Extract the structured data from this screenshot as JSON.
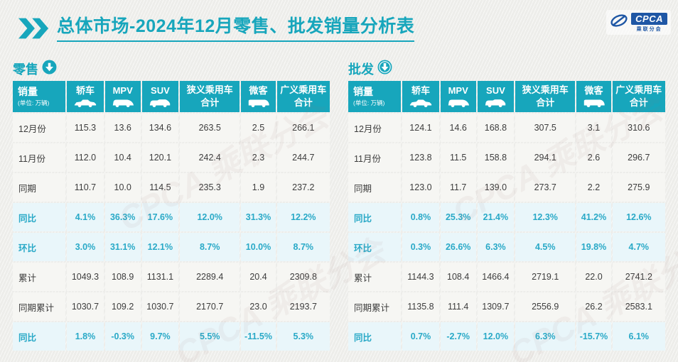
{
  "theme": {
    "accent": "#17a6bc",
    "highlight_row_bg": "#e9f6fa",
    "highlight_row_text": "#29a9c7",
    "logo_blue": "#1f57a5",
    "page_bg": "#f0f0ed"
  },
  "header": {
    "title_bold": "总体市场",
    "title_rest": "-2024年12月零售、批发销量分析表"
  },
  "logo": {
    "text": "CPCA",
    "subtext": "乘联分会"
  },
  "watermark": "CPCA 乘联分会",
  "chart_data": [
    {
      "type": "table",
      "name": "零售",
      "corner_label": "销量",
      "unit_note": "(单位: 万辆)",
      "columns": [
        {
          "label": "轿车",
          "icon": "sedan-icon"
        },
        {
          "label": "MPV",
          "icon": "mpv-icon"
        },
        {
          "label": "SUV",
          "icon": "suv-icon"
        },
        {
          "label": "狭义乘用车",
          "sub": "合计"
        },
        {
          "label": "微客",
          "icon": "van-icon"
        },
        {
          "label": "广义乘用车",
          "sub": "合计"
        }
      ],
      "rows": [
        {
          "label": "12月份",
          "highlight": false,
          "values": [
            "115.3",
            "13.6",
            "134.6",
            "263.5",
            "2.5",
            "266.1"
          ]
        },
        {
          "label": "11月份",
          "highlight": false,
          "values": [
            "112.0",
            "10.4",
            "120.1",
            "242.4",
            "2.3",
            "244.7"
          ]
        },
        {
          "label": "同期",
          "highlight": false,
          "values": [
            "110.7",
            "10.0",
            "114.5",
            "235.3",
            "1.9",
            "237.2"
          ]
        },
        {
          "label": "同比",
          "highlight": true,
          "values": [
            "4.1%",
            "36.3%",
            "17.6%",
            "12.0%",
            "31.3%",
            "12.2%"
          ]
        },
        {
          "label": "环比",
          "highlight": true,
          "values": [
            "3.0%",
            "31.1%",
            "12.1%",
            "8.7%",
            "10.0%",
            "8.7%"
          ]
        },
        {
          "label": "累计",
          "highlight": false,
          "values": [
            "1049.3",
            "108.9",
            "1131.1",
            "2289.4",
            "20.4",
            "2309.8"
          ]
        },
        {
          "label": "同期累计",
          "highlight": false,
          "values": [
            "1030.7",
            "109.2",
            "1030.7",
            "2170.7",
            "23.0",
            "2193.7"
          ]
        },
        {
          "label": "同比",
          "highlight": true,
          "values": [
            "1.8%",
            "-0.3%",
            "9.7%",
            "5.5%",
            "-11.5%",
            "5.3%"
          ]
        }
      ]
    },
    {
      "type": "table",
      "name": "批发",
      "corner_label": "销量",
      "unit_note": "(单位: 万辆)",
      "columns": [
        {
          "label": "轿车",
          "icon": "sedan-icon"
        },
        {
          "label": "MPV",
          "icon": "mpv-icon"
        },
        {
          "label": "SUV",
          "icon": "suv-icon"
        },
        {
          "label": "狭义乘用车",
          "sub": "合计"
        },
        {
          "label": "微客",
          "icon": "van-icon"
        },
        {
          "label": "广义乘用车",
          "sub": "合计"
        }
      ],
      "rows": [
        {
          "label": "12月份",
          "highlight": false,
          "values": [
            "124.1",
            "14.6",
            "168.8",
            "307.5",
            "3.1",
            "310.6"
          ]
        },
        {
          "label": "11月份",
          "highlight": false,
          "values": [
            "123.8",
            "11.5",
            "158.8",
            "294.1",
            "2.6",
            "296.7"
          ]
        },
        {
          "label": "同期",
          "highlight": false,
          "values": [
            "123.0",
            "11.7",
            "139.0",
            "273.7",
            "2.2",
            "275.9"
          ]
        },
        {
          "label": "同比",
          "highlight": true,
          "values": [
            "0.8%",
            "25.3%",
            "21.4%",
            "12.3%",
            "41.2%",
            "12.6%"
          ]
        },
        {
          "label": "环比",
          "highlight": true,
          "values": [
            "0.3%",
            "26.6%",
            "6.3%",
            "4.5%",
            "19.8%",
            "4.7%"
          ]
        },
        {
          "label": "累计",
          "highlight": false,
          "values": [
            "1144.3",
            "108.4",
            "1466.4",
            "2719.1",
            "22.0",
            "2741.2"
          ]
        },
        {
          "label": "同期累计",
          "highlight": false,
          "values": [
            "1135.8",
            "111.4",
            "1309.7",
            "2556.9",
            "26.2",
            "2583.1"
          ]
        },
        {
          "label": "同比",
          "highlight": true,
          "values": [
            "0.7%",
            "-2.7%",
            "12.0%",
            "6.3%",
            "-15.7%",
            "6.1%"
          ]
        }
      ]
    }
  ]
}
